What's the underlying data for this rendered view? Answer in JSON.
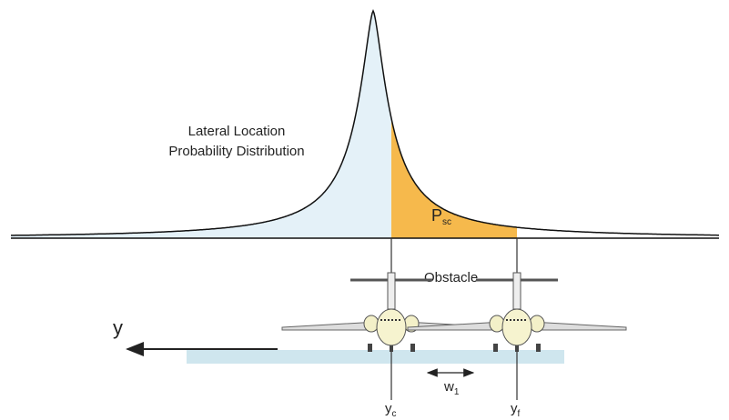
{
  "distribution_label": {
    "line1": "Lateral Location",
    "line2": "Probability Distribution"
  },
  "area_label": {
    "main": "P",
    "sub": "sc"
  },
  "obstacle_label": "Obstacle",
  "axis_label": "y",
  "width_label": {
    "main": "w",
    "sub": "1"
  },
  "marker_c": {
    "main": "y",
    "sub": "c"
  },
  "marker_f": {
    "main": "y",
    "sub": "f"
  }
}
